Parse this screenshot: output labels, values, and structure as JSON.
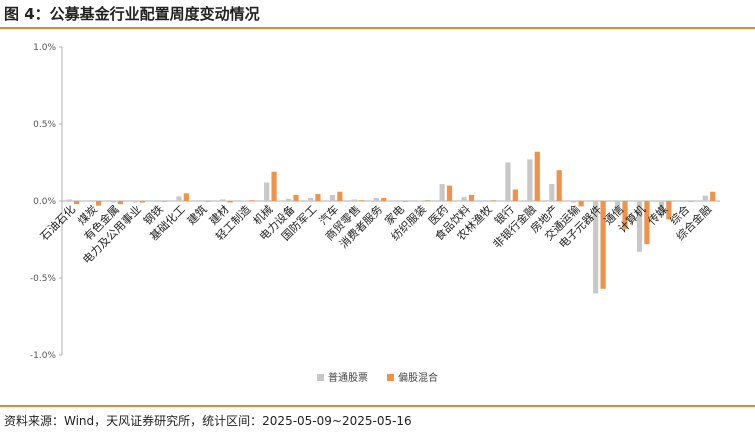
{
  "figure": {
    "title": "图 4：公募基金行业配置周度变动情况",
    "source": "资料来源：Wind，天风证券研究所，统计区间：2025-05-09~2025-05-16"
  },
  "colors": {
    "series1": "#c8c8c8",
    "series2": "#f0924a",
    "accent_rule": "#e8862e",
    "axis": "#b0b0b0"
  },
  "chart_data": {
    "type": "bar",
    "title": "",
    "xlabel": "",
    "ylabel": "",
    "ylim": [
      -1.0,
      1.0
    ],
    "yticks": [
      1.0,
      0.5,
      0.0,
      -0.5,
      -1.0
    ],
    "ytick_labels": [
      "1.0%",
      "0.5%",
      "0.0%",
      "-0.5%",
      "-1.0%"
    ],
    "grid": false,
    "legend_position": "bottom",
    "categories": [
      "石油石化",
      "煤炭",
      "有色金属",
      "电力及公用事业",
      "钢铁",
      "基础化工",
      "建筑",
      "建材",
      "轻工制造",
      "机械",
      "电力设备",
      "国防军工",
      "汽车",
      "商贸零售",
      "消费者服务",
      "家电",
      "纺织服装",
      "医药",
      "食品饮料",
      "农林渔牧",
      "银行",
      "非银行金融",
      "房地产",
      "交通运输",
      "电子元器件",
      "通信",
      "计算机",
      "传媒",
      "综合",
      "综合金融"
    ],
    "series": [
      {
        "name": "普通股票",
        "values": [
          0.01,
          0.005,
          -0.01,
          -0.01,
          -0.005,
          0.03,
          -0.005,
          0.01,
          0.003,
          0.12,
          0.015,
          0.02,
          0.04,
          0.01,
          0.02,
          -0.005,
          0.003,
          0.11,
          0.025,
          0.005,
          0.25,
          0.27,
          0.11,
          -0.01,
          -0.6,
          -0.08,
          -0.33,
          -0.1,
          -0.005,
          0.035
        ]
      },
      {
        "name": "偏股混合",
        "values": [
          -0.02,
          -0.03,
          -0.02,
          -0.01,
          -0.005,
          0.05,
          -0.005,
          -0.01,
          0.005,
          0.19,
          0.04,
          0.045,
          0.06,
          0.005,
          0.02,
          -0.005,
          0.005,
          0.1,
          0.04,
          0.005,
          0.075,
          0.32,
          0.2,
          -0.035,
          -0.57,
          -0.18,
          -0.28,
          -0.12,
          -0.005,
          0.06
        ]
      }
    ]
  }
}
